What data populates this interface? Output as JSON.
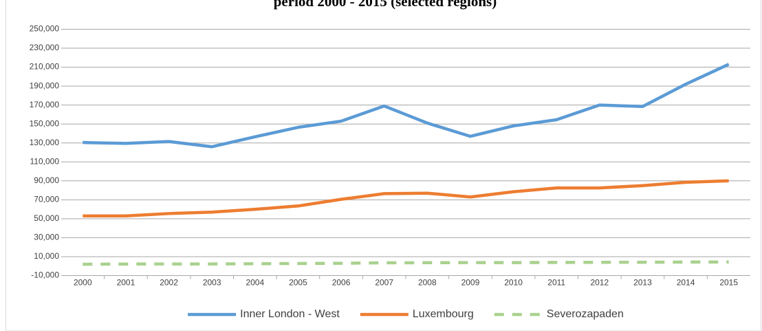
{
  "chart_data": {
    "type": "line",
    "title": "period 2000 - 2015 (selected regions)",
    "categories": [
      "2000",
      "2001",
      "2002",
      "2003",
      "2004",
      "2005",
      "2006",
      "2007",
      "2008",
      "2009",
      "2010",
      "2011",
      "2012",
      "2013",
      "2014",
      "2015"
    ],
    "series": [
      {
        "name": "Inner London - West",
        "color": "#5b9bd5",
        "values": [
          130500,
          129500,
          131500,
          126000,
          136500,
          146500,
          153000,
          169000,
          151000,
          137000,
          148000,
          154500,
          170000,
          168500,
          192000,
          213000
        ]
      },
      {
        "name": "Luxembourg",
        "color": "#ed7d31",
        "values": [
          53000,
          53000,
          55500,
          57000,
          60000,
          63500,
          70500,
          76500,
          77000,
          73000,
          78500,
          82500,
          82500,
          85000,
          88500,
          90000
        ]
      },
      {
        "name": "Severozapaden",
        "color": "#a9d18e",
        "dashed": true,
        "values": [
          2000,
          2200,
          2300,
          2300,
          2500,
          2800,
          3000,
          3500,
          3600,
          3700,
          3700,
          3900,
          4000,
          4100,
          4300,
          4400
        ]
      }
    ],
    "ylim": [
      -10000,
      250000
    ],
    "yticks": [
      {
        "value": -10000,
        "label": "-10,000"
      },
      {
        "value": 10000,
        "label": "10,000"
      },
      {
        "value": 30000,
        "label": "30,000"
      },
      {
        "value": 50000,
        "label": "50,000"
      },
      {
        "value": 70000,
        "label": "70,000"
      },
      {
        "value": 90000,
        "label": "90,000"
      },
      {
        "value": 110000,
        "label": "110,000"
      },
      {
        "value": 130000,
        "label": "130,000"
      },
      {
        "value": 150000,
        "label": "150,000"
      },
      {
        "value": 170000,
        "label": "170,000"
      },
      {
        "value": 190000,
        "label": "190,000"
      },
      {
        "value": 210000,
        "label": "210,000"
      },
      {
        "value": 230000,
        "label": "230,000"
      },
      {
        "value": 250000,
        "label": "250,000"
      }
    ],
    "grid": true,
    "legend": "bottom"
  }
}
